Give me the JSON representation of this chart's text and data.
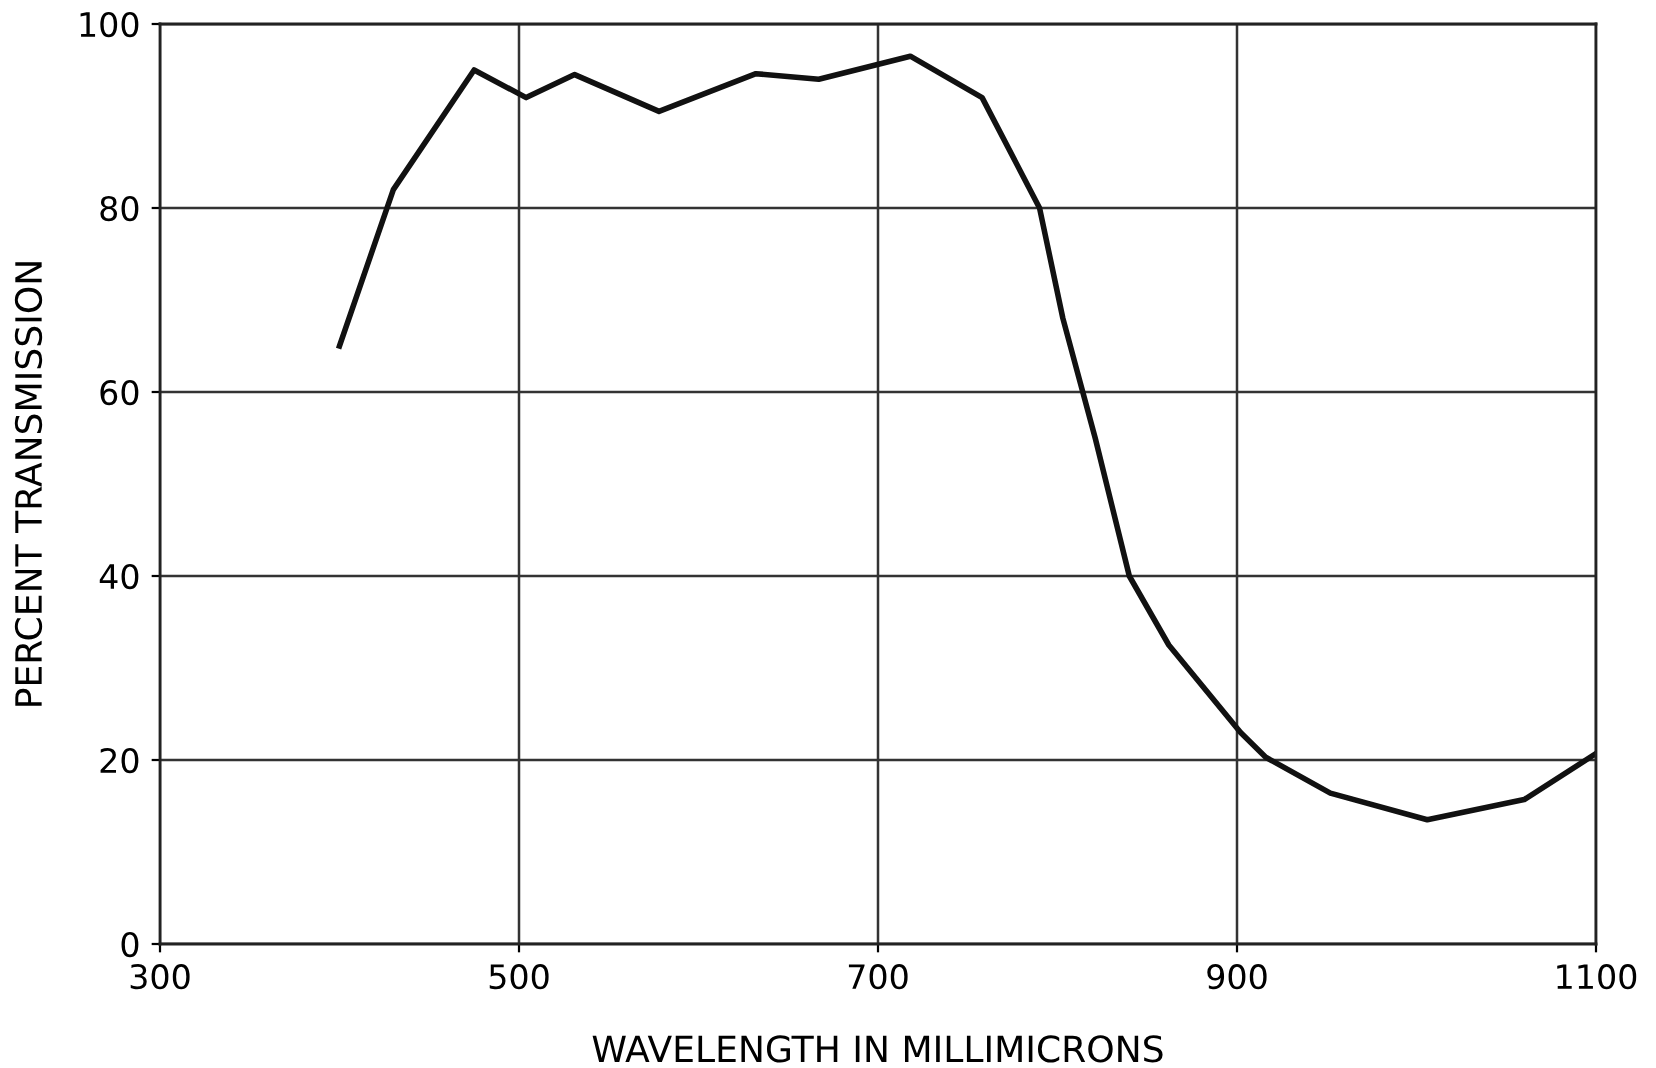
{
  "chart_data": {
    "type": "line",
    "xlabel": "WAVELENGTH IN MILLIMICRONS",
    "ylabel": "PERCENT TRANSMISSION",
    "xlim": [
      300,
      1100
    ],
    "ylim": [
      0,
      100
    ],
    "xticks": [
      300,
      500,
      700,
      900,
      1100
    ],
    "yticks": [
      0,
      20,
      40,
      60,
      80,
      100
    ],
    "grid": true,
    "series": [
      {
        "color": "#111111",
        "x": [
          400,
          430,
          475,
          504,
          531,
          578,
          632,
          667,
          718,
          758,
          790,
          803,
          821,
          840,
          862,
          902,
          916,
          952,
          1006,
          1060,
          1100
        ],
        "values": [
          65,
          82,
          95,
          92,
          94.5,
          90.5,
          94.6,
          94,
          96.5,
          92,
          80,
          68,
          55,
          40,
          32.5,
          23,
          20.3,
          16.4,
          13.5,
          15.7,
          20.7
        ]
      }
    ]
  }
}
